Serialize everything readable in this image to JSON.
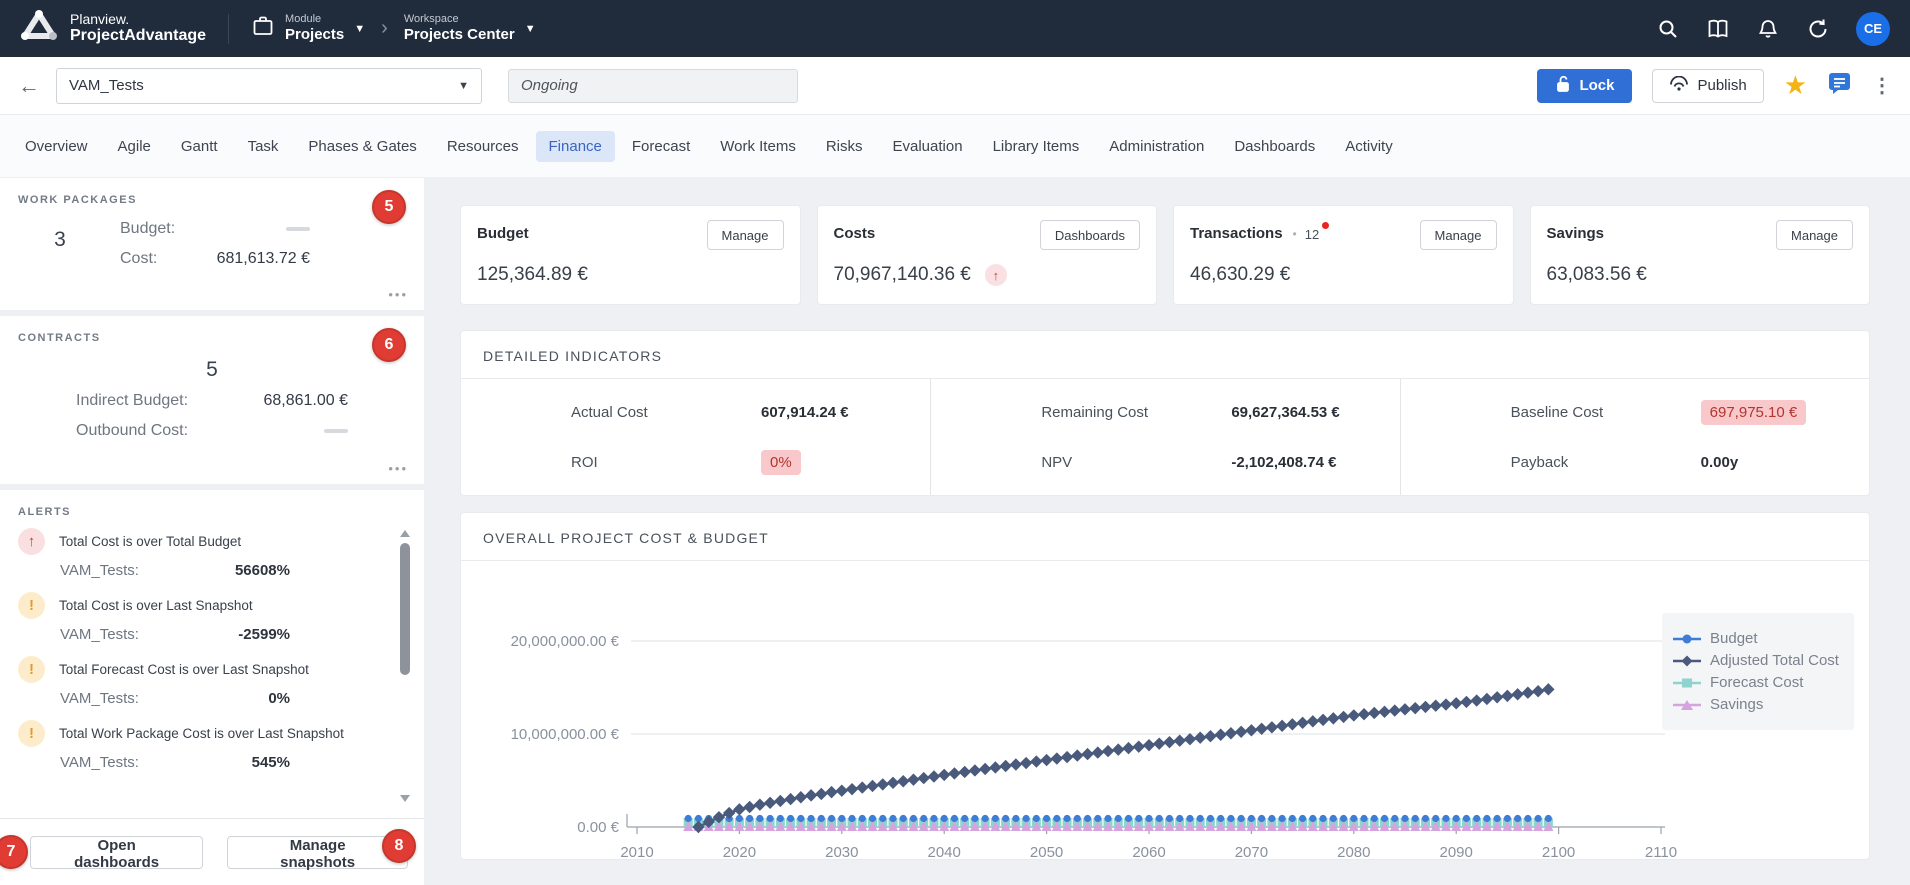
{
  "topbar": {
    "brand": {
      "line1": "Planview.",
      "line2": "ProjectAdvantage"
    },
    "module": {
      "label": "Module",
      "value": "Projects"
    },
    "workspace": {
      "label": "Workspace",
      "value": "Projects Center"
    },
    "icons": [
      "search-icon",
      "book-icon",
      "bell-icon",
      "refresh-icon"
    ],
    "avatar_initials": "CE"
  },
  "header": {
    "project_selector": "VAM_Tests",
    "status_value": "Ongoing",
    "lock_button": "Lock",
    "publish_button": "Publish"
  },
  "tabs": {
    "active": "Finance",
    "items": [
      "Overview",
      "Agile",
      "Gantt",
      "Task",
      "Phases & Gates",
      "Resources",
      "Finance",
      "Forecast",
      "Work Items",
      "Risks",
      "Evaluation",
      "Library Items",
      "Administration",
      "Dashboards",
      "Activity"
    ]
  },
  "sidebar": {
    "work_packages": {
      "title": "WORK PACKAGES",
      "badge": "5",
      "count": "3",
      "budget_label": "Budget:",
      "budget_value": "",
      "cost_label": "Cost:",
      "cost_value": "681,613.72 €"
    },
    "contracts": {
      "title": "CONTRACTS",
      "badge": "6",
      "count": "5",
      "indirect_budget_label": "Indirect Budget:",
      "indirect_budget_value": "68,861.00 €",
      "outbound_cost_label": "Outbound Cost:",
      "outbound_cost_value": ""
    },
    "alerts": {
      "title": "ALERTS",
      "items": [
        {
          "icon": "arrow-up-red-icon",
          "title": "Total Cost is over Total Budget",
          "target": "VAM_Tests:",
          "value": "56608%"
        },
        {
          "icon": "warning-icon",
          "title": "Total Cost is over Last Snapshot",
          "target": "VAM_Tests:",
          "value": "-2599%"
        },
        {
          "icon": "warning-icon",
          "title": "Total Forecast Cost is over Last Snapshot",
          "target": "VAM_Tests:",
          "value": "0%"
        },
        {
          "icon": "warning-icon",
          "title": "Total Work Package Cost is over Last Snapshot",
          "target": "VAM_Tests:",
          "value": "545%"
        }
      ]
    },
    "footer": {
      "open_dashboards": "Open dashboards",
      "open_badge": "7",
      "manage_snapshots": "Manage snapshots",
      "manage_badge": "8"
    }
  },
  "summary_cards": [
    {
      "title": "Budget",
      "action": "Manage",
      "value": "125,364.89 €"
    },
    {
      "title": "Costs",
      "action": "Dashboards",
      "value": "70,967,140.36 €",
      "trend": "up"
    },
    {
      "title": "Transactions",
      "action": "Manage",
      "value": "46,630.29 €",
      "count": "12",
      "separator": "•",
      "notification_dot": true
    },
    {
      "title": "Savings",
      "action": "Manage",
      "value": "63,083.56 €"
    }
  ],
  "indicators": {
    "title": "DETAILED INDICATORS",
    "cells": [
      {
        "label": "Actual Cost",
        "value": "607,914.24 €",
        "highlight": false
      },
      {
        "label": "ROI",
        "value": "0%",
        "highlight": true
      },
      {
        "label": "Remaining Cost",
        "value": "69,627,364.53 €",
        "highlight": false
      },
      {
        "label": "NPV",
        "value": "-2,102,408.74 €",
        "highlight": false
      },
      {
        "label": "Baseline Cost",
        "value": "697,975.10 €",
        "highlight": true
      },
      {
        "label": "Payback",
        "value": "0.00y",
        "highlight": false
      }
    ]
  },
  "chart_data": {
    "type": "line",
    "title": "OVERALL PROJECT COST & BUDGET",
    "xlabel": "",
    "ylabel": "",
    "x_range": [
      2010,
      2110
    ],
    "x_ticks": [
      2010,
      2020,
      2030,
      2040,
      2050,
      2060,
      2070,
      2080,
      2090,
      2100,
      2110
    ],
    "y_ticks": [
      {
        "value": 0,
        "label": "0.00 €"
      },
      {
        "value": 10000000,
        "label": "10,000,000.00 €"
      },
      {
        "value": 20000000,
        "label": "20,000,000.00 €"
      }
    ],
    "ylim": [
      0,
      22000000
    ],
    "grid": true,
    "legend_position": "right",
    "series": [
      {
        "name": "Budget",
        "marker": "circle",
        "color": "#3f7cd6",
        "x_start": 2015,
        "x_end": 2099,
        "constant_value": 125364.89
      },
      {
        "name": "Adjusted Total Cost",
        "marker": "diamond",
        "color": "#4a5a7d",
        "x_start": 2016,
        "step": 1,
        "values": [
          0,
          550000,
          1050000,
          1500000,
          1900000,
          2150000,
          2400000,
          2600000,
          2800000,
          3000000,
          3200000,
          3400000,
          3550000,
          3750000,
          3900000,
          4070000,
          4240000,
          4410000,
          4580000,
          4750000,
          4920000,
          5090000,
          5260000,
          5430000,
          5600000,
          5760000,
          5920000,
          6080000,
          6240000,
          6400000,
          6560000,
          6720000,
          6880000,
          7040000,
          7200000,
          7360000,
          7520000,
          7680000,
          7840000,
          8000000,
          8160000,
          8320000,
          8480000,
          8640000,
          8800000,
          8960000,
          9120000,
          9280000,
          9440000,
          9600000,
          9760000,
          9920000,
          10080000,
          10240000,
          10400000,
          10560000,
          10720000,
          10880000,
          11040000,
          11200000,
          11360000,
          11520000,
          11680000,
          11840000,
          12000000,
          12130000,
          12260000,
          12390000,
          12520000,
          12650000,
          12780000,
          12910000,
          13040000,
          13170000,
          13300000,
          13450000,
          13600000,
          13770000,
          13950000,
          14100000,
          14270000,
          14440000,
          14600000,
          14800000
        ]
      },
      {
        "name": "Forecast Cost",
        "marker": "square",
        "color": "#8ed3ce",
        "x_start": 2015,
        "x_end": 2099,
        "constant_value": 70000
      },
      {
        "name": "Savings",
        "marker": "triangle",
        "color": "#d5a4df",
        "x_start": 2015,
        "x_end": 2099,
        "constant_value": 63083.56
      }
    ]
  },
  "colors": {
    "topbar_bg": "#202b3b",
    "accent_blue": "#2f6fd6",
    "badge_red": "#e13c33",
    "alert_red": "#cf3e36",
    "alert_orange": "#e09c2e",
    "highlight_pink": "#f8c8cb",
    "active_tab_bg": "#dbe6f8"
  }
}
